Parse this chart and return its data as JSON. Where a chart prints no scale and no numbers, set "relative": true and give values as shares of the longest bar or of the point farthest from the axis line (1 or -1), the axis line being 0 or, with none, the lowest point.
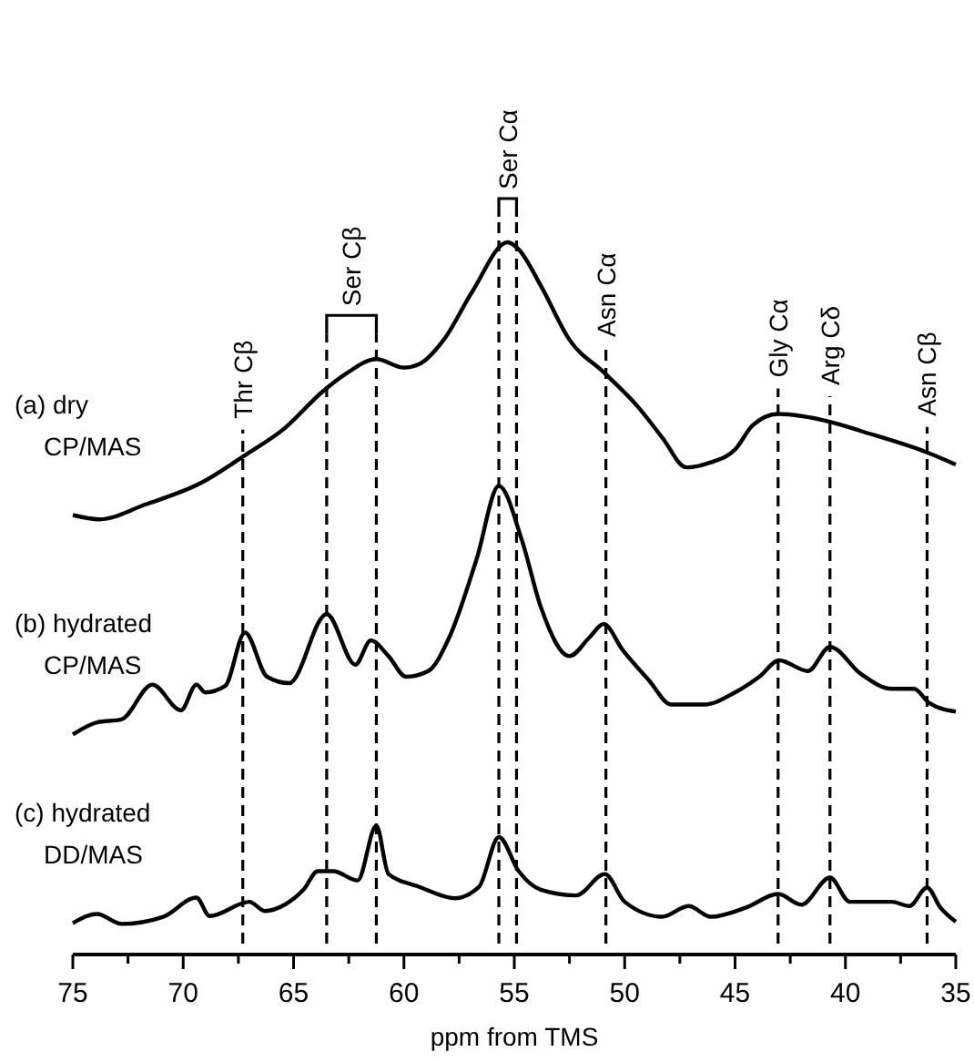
{
  "chart_data": {
    "type": "line",
    "relative": true,
    "xlabel": "ppm from TMS",
    "xlim": [
      75,
      35
    ],
    "xticks": [
      75,
      {
        "value": 72.5,
        "label": null
      },
      70,
      {
        "value": 67.5,
        "label": null
      },
      65,
      {
        "value": 62.5,
        "label": null
      },
      60,
      {
        "value": 57.5,
        "label": null
      },
      55,
      {
        "value": 52.5,
        "label": null
      },
      50,
      {
        "value": 47.5,
        "label": null
      },
      45,
      {
        "value": 42.5,
        "label": null
      },
      40,
      {
        "value": 37.5,
        "label": null
      },
      35
    ],
    "grid": false,
    "marker": "none",
    "line_style": "solid",
    "series": [
      {
        "name": "(a) dry CP/MAS",
        "color": "#000000",
        "x": [
          75,
          73.8,
          71.7,
          69.2,
          67.2,
          65.4,
          63.7,
          62.6,
          61.25,
          60.0,
          59.3,
          58.2,
          56.9,
          55.3,
          54.8,
          53.8,
          52.5,
          50.9,
          49.4,
          48.3,
          47.2,
          46.1,
          45.0,
          44.2,
          43.05,
          40.7,
          39.3,
          36.3,
          35
        ],
        "values": [
          0.617,
          0.611,
          0.632,
          0.662,
          0.701,
          0.739,
          0.79,
          0.816,
          0.836,
          0.824,
          0.829,
          0.863,
          0.931,
          1,
          0.99,
          0.939,
          0.863,
          0.816,
          0.769,
          0.726,
          0.684,
          0.691,
          0.709,
          0.743,
          0.759,
          0.748,
          0.735,
          0.705,
          0.688
        ]
      },
      {
        "name": "(b) hydrated CP/MAS",
        "color": "#000000",
        "x": [
          75,
          73.9,
          72.8,
          71.4,
          70.1,
          69.4,
          69.0,
          68.1,
          67.2,
          66.2,
          65.2,
          63.5,
          62.2,
          61.5,
          60.7,
          59.9,
          58.9,
          57.95,
          56.7,
          55.7,
          54.65,
          53.8,
          52.5,
          51.6,
          50.95,
          50.1,
          48.9,
          47.9,
          46.4,
          45.0,
          43.9,
          43.0,
          41.7,
          40.7,
          39.3,
          37.9,
          36.9,
          36.2,
          35
        ],
        "values": [
          0.309,
          0.326,
          0.33,
          0.379,
          0.343,
          0.379,
          0.368,
          0.377,
          0.452,
          0.39,
          0.381,
          0.478,
          0.407,
          0.441,
          0.419,
          0.39,
          0.398,
          0.445,
          0.556,
          0.658,
          0.581,
          0.488,
          0.419,
          0.445,
          0.464,
          0.428,
          0.385,
          0.351,
          0.351,
          0.368,
          0.39,
          0.413,
          0.398,
          0.432,
          0.394,
          0.373,
          0.373,
          0.353,
          0.341
        ]
      },
      {
        "name": "(c) hydrated DD/MAS",
        "color": "#000000",
        "x": [
          75,
          73.9,
          72.8,
          70.9,
          69.4,
          68.8,
          67.0,
          66.3,
          65.4,
          64.55,
          63.9,
          63.2,
          62.1,
          61.25,
          60.7,
          59.3,
          57.7,
          56.6,
          55.7,
          54.8,
          53.8,
          52.2,
          50.9,
          50.0,
          48.3,
          47.1,
          46.1,
          44.5,
          43.05,
          42.0,
          40.7,
          39.8,
          37.9,
          37.1,
          36.3,
          35.7,
          35
        ],
        "values": [
          0.044,
          0.057,
          0.043,
          0.053,
          0.08,
          0.054,
          0.074,
          0.061,
          0.07,
          0.091,
          0.117,
          0.117,
          0.104,
          0.181,
          0.113,
          0.095,
          0.079,
          0.095,
          0.165,
          0.117,
          0.091,
          0.083,
          0.113,
          0.074,
          0.053,
          0.068,
          0.053,
          0.066,
          0.085,
          0.07,
          0.108,
          0.074,
          0.074,
          0.068,
          0.094,
          0.066,
          0.046
        ]
      }
    ],
    "ref_lines": [
      {
        "axis": "x",
        "value": 67.3,
        "label": "Thr Cβ",
        "line_style": "dashed"
      },
      {
        "axis": "x",
        "value": 63.5,
        "label": "Ser Cβ",
        "line_style": "dashed"
      },
      {
        "axis": "x",
        "value": 61.25,
        "label": null,
        "line_style": "dashed"
      },
      {
        "axis": "x",
        "value": 55.7,
        "label": "Ser Cα",
        "line_style": "dashed"
      },
      {
        "axis": "x",
        "value": 54.9,
        "label": null,
        "line_style": "dashed"
      },
      {
        "axis": "x",
        "value": 50.85,
        "label": "Asn Cα",
        "line_style": "dashed"
      },
      {
        "axis": "x",
        "value": 43.05,
        "label": "Gly Cα",
        "line_style": "dashed"
      },
      {
        "axis": "x",
        "value": 40.7,
        "label": "Arg Cδ",
        "line_style": "dashed"
      },
      {
        "axis": "x",
        "value": 36.3,
        "label": "Asn Cβ",
        "line_style": "dashed"
      }
    ]
  }
}
